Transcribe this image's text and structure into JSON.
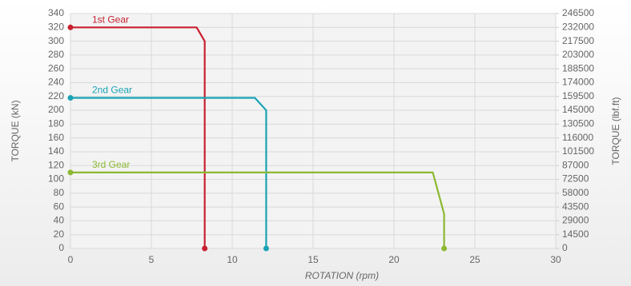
{
  "chart_data": {
    "type": "line",
    "x_label": "ROTATION (rpm)",
    "y_label": "TORQUE (kN)",
    "y2_label": "TORQUE (lbf.ft)",
    "xlim": [
      0,
      30
    ],
    "xticks": [
      0,
      5,
      10,
      15,
      20,
      25,
      30
    ],
    "ylim": [
      0,
      340
    ],
    "yticks": [
      0,
      20,
      40,
      60,
      80,
      100,
      120,
      140,
      160,
      180,
      200,
      220,
      240,
      260,
      280,
      300,
      320,
      340
    ],
    "y2lim": [
      0,
      246500
    ],
    "y2ticks": [
      0,
      14500,
      29000,
      43500,
      58000,
      72500,
      87000,
      101500,
      116000,
      130500,
      145000,
      159500,
      174000,
      188500,
      203000,
      217500,
      232000,
      246500
    ],
    "grid": true,
    "series": [
      {
        "name": "1st Gear",
        "color": "#c8202f",
        "x": [
          0,
          7.8,
          8.3,
          8.3
        ],
        "values": [
          320,
          320,
          300,
          0
        ]
      },
      {
        "name": "2nd Gear",
        "color": "#1aa3b5",
        "x": [
          0,
          11.4,
          12.1,
          12.1
        ],
        "values": [
          218,
          218,
          200,
          0
        ]
      },
      {
        "name": "3rd Gear",
        "color": "#8cb832",
        "x": [
          0,
          22.4,
          23.1,
          23.1
        ],
        "values": [
          110,
          110,
          50,
          0
        ]
      }
    ]
  }
}
